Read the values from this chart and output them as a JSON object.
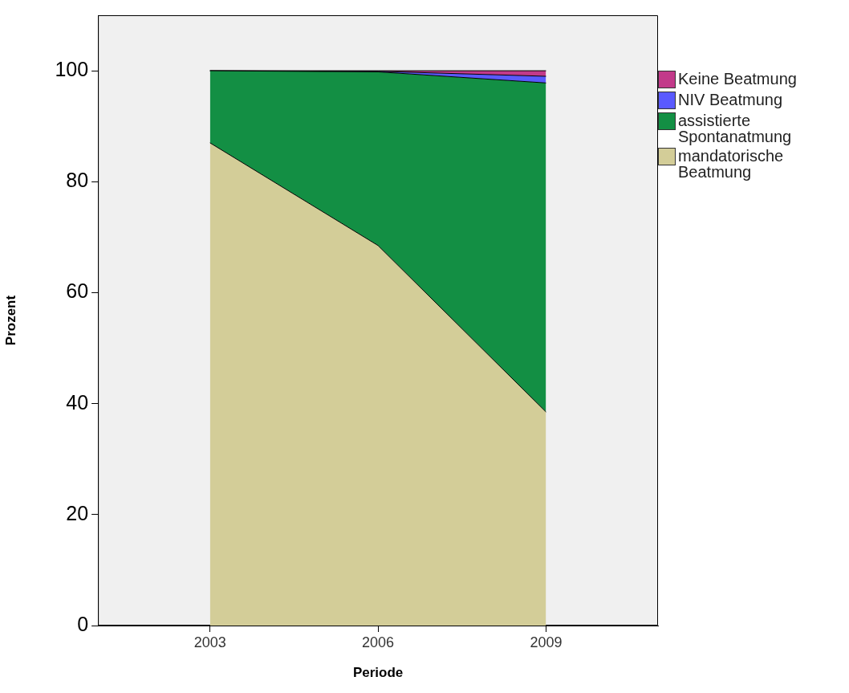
{
  "chart_data": {
    "type": "area",
    "stacked": true,
    "xlabel": "Periode",
    "ylabel": "Prozent",
    "x": [
      2003,
      2006,
      2009
    ],
    "xlim": [
      2001,
      2011
    ],
    "xticks": [
      2003,
      2006,
      2009
    ],
    "ylim": [
      0,
      110
    ],
    "yticks": [
      0,
      20,
      40,
      60,
      80,
      100
    ],
    "grid": false,
    "legend": "top right",
    "marker": "none",
    "line_style": "solid",
    "series": [
      {
        "name": "mandatorische Beatmung",
        "color": "#d3cd98",
        "values": [
          87,
          68.5,
          38.5
        ]
      },
      {
        "name": "assistierte Spontanatmung",
        "color": "#138f44",
        "values": [
          13,
          31.3,
          59.3
        ]
      },
      {
        "name": "NIV Beatmung",
        "color": "#5a5aff",
        "values": [
          0,
          0.1,
          1.2
        ]
      },
      {
        "name": "Keine Beatmung",
        "color": "#c23a8a",
        "values": [
          0,
          0.1,
          1.0
        ]
      }
    ]
  }
}
